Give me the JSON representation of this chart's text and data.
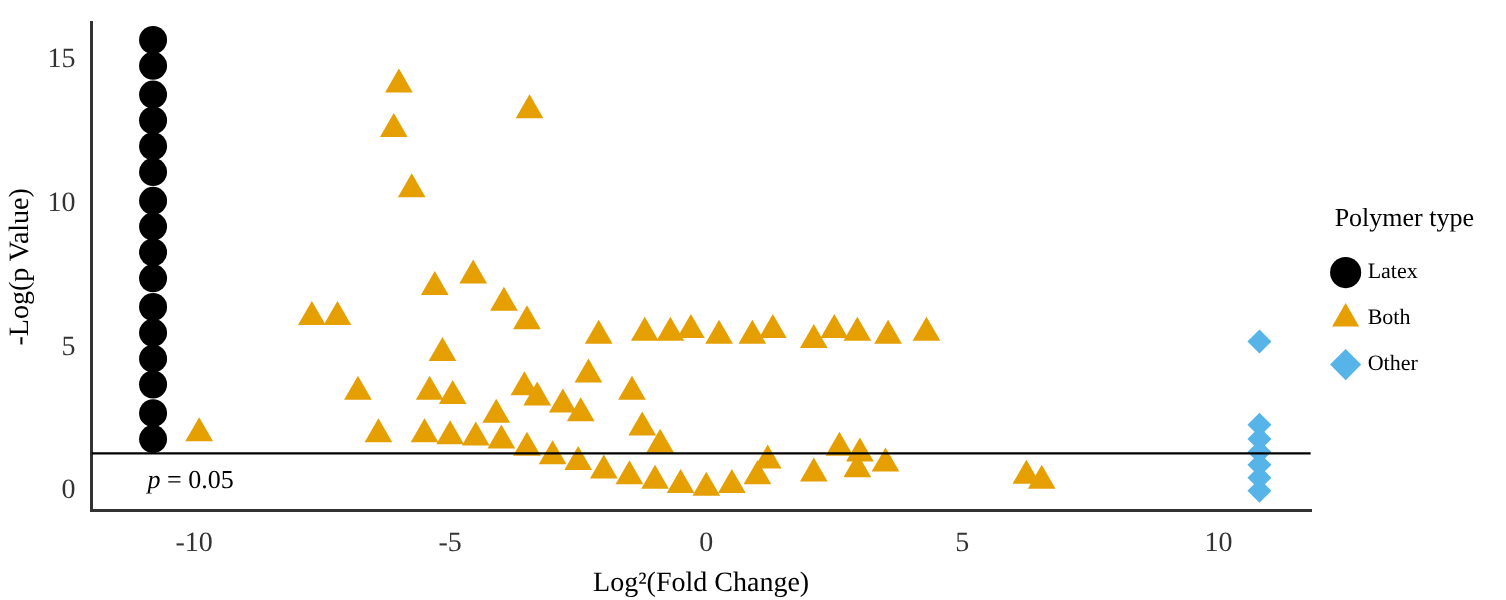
{
  "chart_data": {
    "type": "scatter",
    "xlabel": "Log²(Fold Change)",
    "ylabel": "-Log(p Value)",
    "legend_title": "Polymer type",
    "legend": "right",
    "grid": false,
    "xlim": [
      -12,
      11.8
    ],
    "ylim": [
      -0.7,
      16.3
    ],
    "xticks": [
      -10,
      -5,
      0,
      5,
      10
    ],
    "yticks": [
      0,
      5,
      10,
      15
    ],
    "ref_lines": [
      {
        "axis": "y",
        "value": 1.3,
        "color": "#000000"
      }
    ],
    "annotations": [
      "p = 0.05"
    ],
    "series": [
      {
        "name": "Latex",
        "color": "#000000",
        "marker": "circle",
        "x": [
          -10.8,
          -10.8,
          -10.8,
          -10.8,
          -10.8,
          -10.8,
          -10.8,
          -10.8,
          -10.8,
          -10.8,
          -10.8,
          -10.8,
          -10.8,
          -10.8,
          -10.8,
          -10.8
        ],
        "values": [
          1.8,
          2.7,
          3.7,
          4.6,
          5.5,
          6.4,
          7.4,
          8.3,
          9.2,
          10.1,
          11.1,
          12.0,
          12.9,
          13.8,
          14.8,
          15.7
        ]
      },
      {
        "name": "Both",
        "color": "#e69f00",
        "marker": "triangle",
        "x": [
          -9.9,
          -7.7,
          -7.2,
          -6.8,
          -6.4,
          -6.0,
          -6.1,
          -5.75,
          -3.45,
          -5.3,
          -4.55,
          -3.95,
          -3.5,
          -5.15,
          -5.4,
          -4.95,
          -4.1,
          -3.55,
          -3.3,
          -5.5,
          -2.1,
          -1.2,
          -0.7,
          -0.3,
          0.25,
          0.9,
          1.3,
          2.1,
          2.5,
          2.95,
          3.55,
          4.3,
          -2.3,
          -1.45,
          -2.45,
          -2.8,
          -1.25,
          -0.9,
          2.6,
          3.0,
          2.1,
          2.95,
          3.5,
          1.2,
          6.25,
          6.55,
          -5.0,
          -4.5,
          -4.0,
          -3.5,
          -3.0,
          -2.5,
          -2.0,
          -1.5,
          -1.0,
          -0.5,
          0,
          0.5,
          1.0
        ],
        "values": [
          2.0,
          6.05,
          6.05,
          3.45,
          1.97,
          14.15,
          12.6,
          10.5,
          13.25,
          7.1,
          7.5,
          6.55,
          5.9,
          4.8,
          3.45,
          3.3,
          2.65,
          3.6,
          3.25,
          1.97,
          5.4,
          5.5,
          5.5,
          5.6,
          5.4,
          5.4,
          5.6,
          5.25,
          5.6,
          5.5,
          5.4,
          5.5,
          4.05,
          3.45,
          2.7,
          3.0,
          2.2,
          1.6,
          1.5,
          1.3,
          0.6,
          0.75,
          0.95,
          1.05,
          0.52,
          0.35,
          1.9,
          1.85,
          1.75,
          1.5,
          1.2,
          1.0,
          0.7,
          0.5,
          0.35,
          0.2,
          0.1,
          0.2,
          0.5
        ]
      },
      {
        "name": "Other",
        "color": "#56b4e9",
        "marker": "diamond",
        "x": [
          10.8,
          10.8,
          10.8,
          10.8,
          10.8,
          10.8,
          10.8
        ],
        "values": [
          0.0,
          0.45,
          0.9,
          1.35,
          1.8,
          2.3,
          5.2
        ]
      }
    ]
  }
}
